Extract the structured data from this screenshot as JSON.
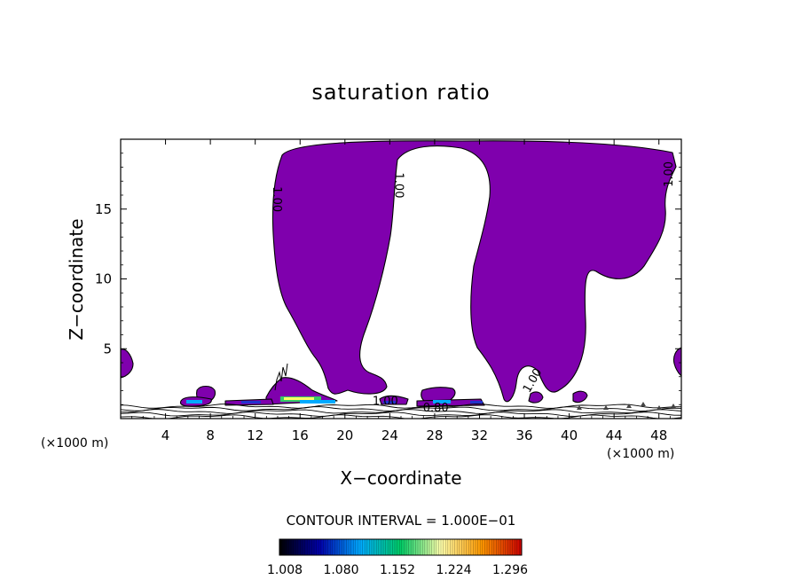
{
  "chart_data": {
    "type": "contour",
    "title": "saturation ratio",
    "xlabel": "X−coordinate",
    "ylabel": "Z−coordinate",
    "x_unit_label": "(×1000 m)",
    "x_unit_label_right": "(×1000 m)",
    "xlim": [
      0,
      50
    ],
    "ylim": [
      0,
      20
    ],
    "x_ticks": [
      4,
      8,
      12,
      16,
      20,
      24,
      28,
      32,
      36,
      40,
      44,
      48
    ],
    "y_ticks": [
      5,
      10,
      15
    ],
    "fill_color": "#7f00ad",
    "contour_interval_label": "CONTOUR INTERVAL = 1.000E−01",
    "contour_labels": [
      {
        "text": "1.00",
        "x": 13.6,
        "y": 15.7,
        "rotate": 90
      },
      {
        "text": "1.00",
        "x": 24.5,
        "y": 16.7,
        "rotate": 90
      },
      {
        "text": "1.00",
        "x": 49.2,
        "y": 17.5,
        "rotate": -90
      },
      {
        "text": "1.00",
        "x": 37.0,
        "y": 2.6,
        "rotate": -60
      },
      {
        "text": "1.00",
        "x": 23.6,
        "y": 1.0,
        "rotate": 0
      },
      {
        "text": "0.80",
        "x": 28.1,
        "y": 0.5,
        "rotate": 0
      }
    ],
    "colorbar": {
      "ticks": [
        "1.008",
        "1.080",
        "1.152",
        "1.224",
        "1.296"
      ],
      "colors": [
        "#000000",
        "#0000aa",
        "#00aaff",
        "#00cc66",
        "#ffffaa",
        "#ff9900",
        "#cc0000"
      ]
    }
  }
}
